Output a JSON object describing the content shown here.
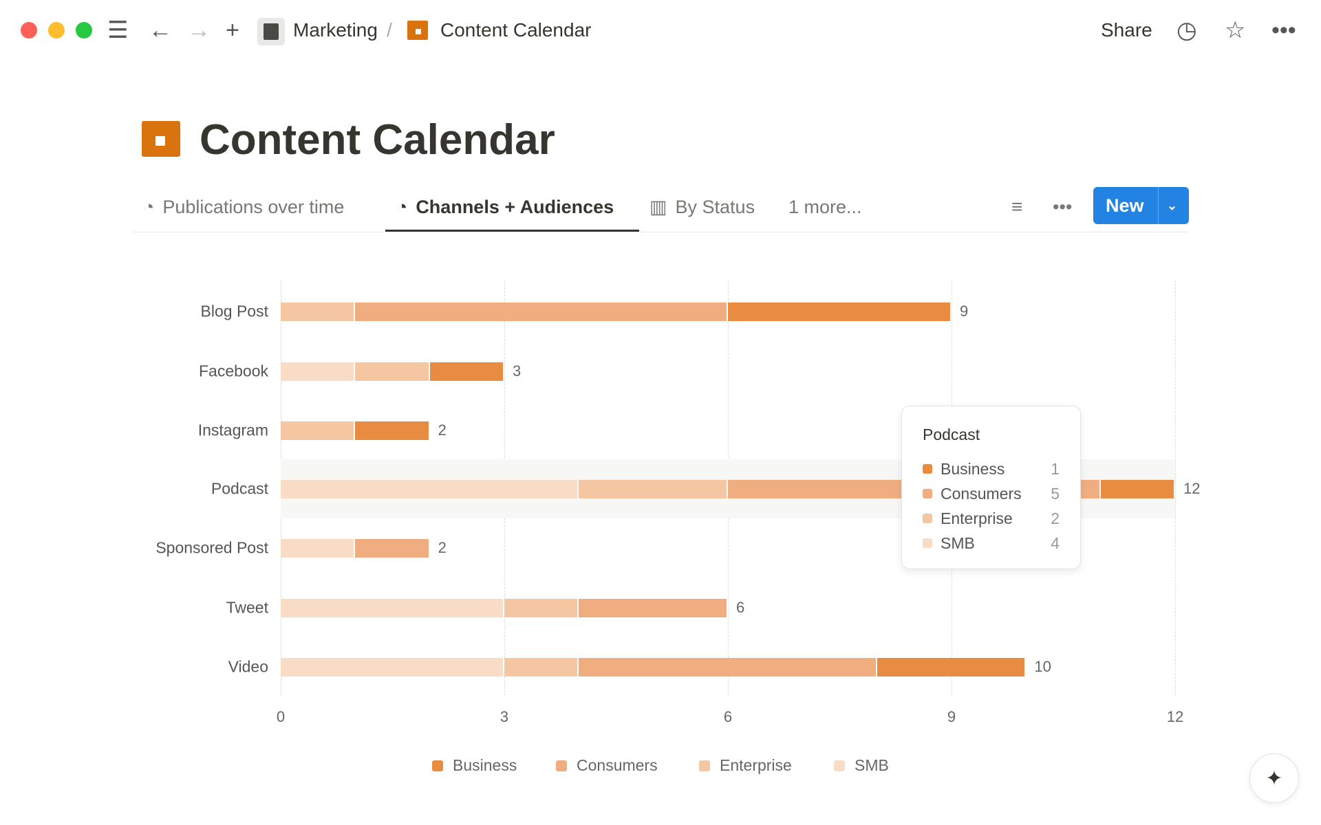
{
  "topbar": {
    "breadcrumb_parent": "Marketing",
    "separator": "/",
    "breadcrumb_current": "Content Calendar",
    "share": "Share"
  },
  "page": {
    "title": "Content Calendar"
  },
  "tabs": [
    {
      "label": "Publications over time"
    },
    {
      "label": "Channels + Audiences",
      "active": true
    },
    {
      "label": "By Status"
    },
    {
      "label": "1 more..."
    }
  ],
  "toolbar": {
    "new_label": "New"
  },
  "colors": {
    "Business": "#e88c42",
    "Consumers": "#f0ae80",
    "Enterprise": "#f5c6a2",
    "SMB": "#f8dcc6",
    "accent": "#2383e2"
  },
  "chart_data": {
    "type": "bar",
    "orientation": "horizontal",
    "stacked": true,
    "categories": [
      "Blog Post",
      "Facebook",
      "Instagram",
      "Podcast",
      "Sponsored Post",
      "Tweet",
      "Video"
    ],
    "series": [
      {
        "name": "SMB",
        "values": [
          0,
          1,
          0,
          4,
          1,
          3,
          3
        ]
      },
      {
        "name": "Enterprise",
        "values": [
          1,
          1,
          1,
          2,
          0,
          1,
          1
        ]
      },
      {
        "name": "Consumers",
        "values": [
          5,
          0,
          0,
          5,
          1,
          2,
          4
        ]
      },
      {
        "name": "Business",
        "values": [
          3,
          1,
          1,
          1,
          0,
          0,
          2
        ]
      }
    ],
    "totals": [
      "9",
      "3",
      "2",
      "12",
      "2",
      "6",
      "10"
    ],
    "xticks": [
      "0",
      "3",
      "6",
      "9",
      "12"
    ],
    "xlim": [
      0,
      12
    ],
    "grid": true,
    "legend": "bottom",
    "legend_entries": [
      "Business",
      "Consumers",
      "Enterprise",
      "SMB"
    ],
    "highlighted": "Podcast",
    "tooltip": {
      "title": "Podcast",
      "rows": [
        {
          "name": "Business",
          "value": "1"
        },
        {
          "name": "Consumers",
          "value": "5"
        },
        {
          "name": "Enterprise",
          "value": "2"
        },
        {
          "name": "SMB",
          "value": "4"
        }
      ]
    }
  }
}
